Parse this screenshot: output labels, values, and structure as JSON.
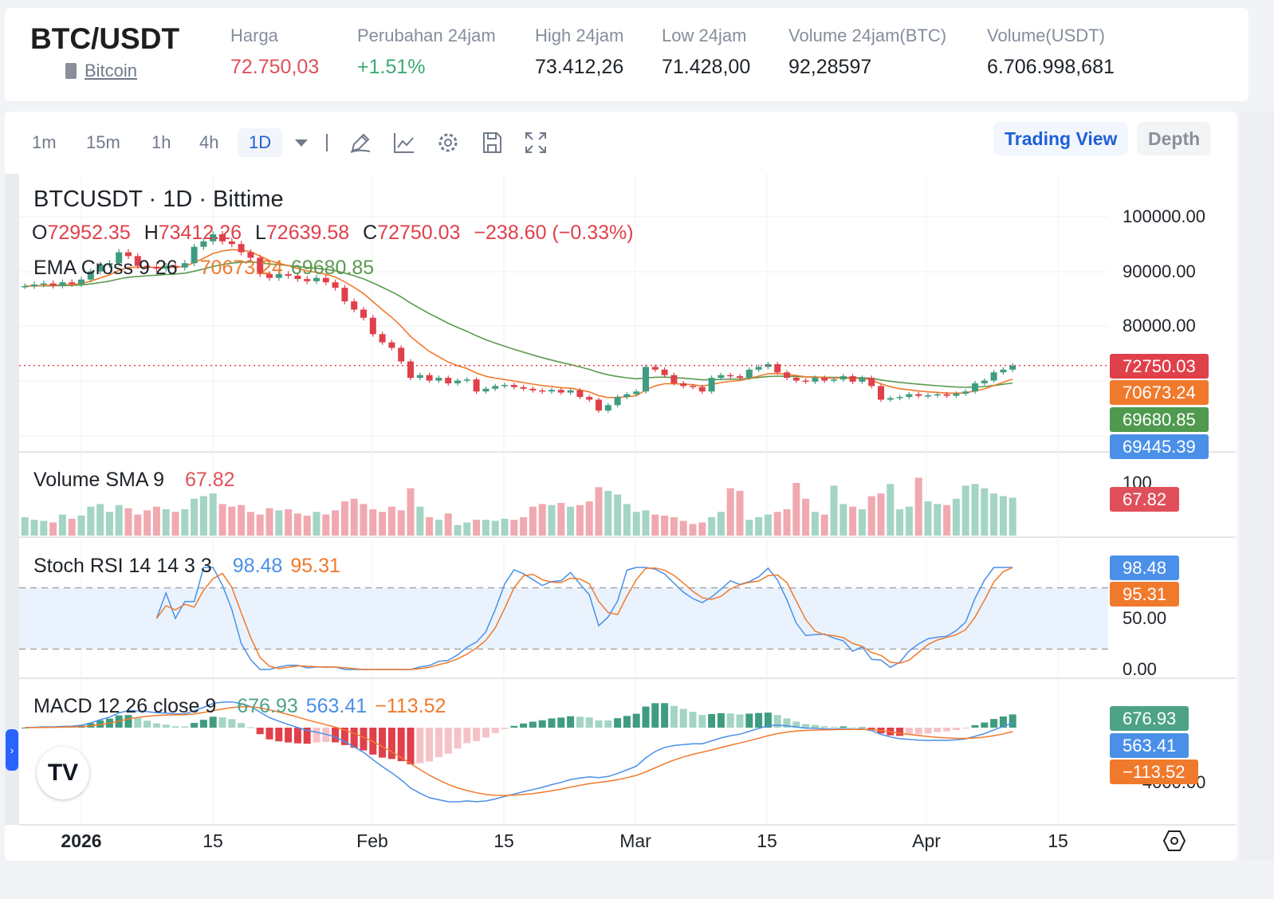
{
  "header": {
    "pair": "BTC/USDT",
    "coin": "Bitcoin",
    "stats": [
      {
        "label": "Harga",
        "value": "72.750,03",
        "color": "#e0505a"
      },
      {
        "label": "Perubahan 24jam",
        "value": "+1.51%",
        "color": "#3bab73"
      },
      {
        "label": "High 24jam",
        "value": "73.412,26",
        "color": "#1e2329"
      },
      {
        "label": "Low 24jam",
        "value": "71.428,00",
        "color": "#1e2329"
      },
      {
        "label": "Volume 24jam(BTC)",
        "value": "92,28597",
        "color": "#1e2329"
      },
      {
        "label": "Volume(USDT)",
        "value": "6.706.998,681",
        "color": "#1e2329"
      }
    ]
  },
  "toolbar": {
    "timeframes": [
      "1m",
      "15m",
      "1h",
      "4h",
      "1D"
    ],
    "active": "1D",
    "tabs": [
      "Trading View",
      "Depth"
    ],
    "active_tab": "Trading View",
    "icons": [
      "dropdown-icon",
      "pencil-draw-icon",
      "indicator-chart-icon",
      "gear-icon",
      "save-icon",
      "fullscreen-icon"
    ]
  },
  "legend": {
    "title": "BTCUSDT · 1D · Bittime",
    "o_label": "O",
    "o": "72952.35",
    "h_label": "H",
    "h": "73412.26",
    "l_label": "L",
    "l": "72639.58",
    "c_label": "C",
    "c": "72750.03",
    "chg": "−238.60 (−0.33%)",
    "ema_label": "EMA Cross 9 26",
    "ema1": "70673.24",
    "ema2": "69680.85",
    "vol_label": "Volume SMA 9",
    "vol_sma": "67.82",
    "stoch_label": "Stoch RSI 14 14 3 3",
    "k": "98.48",
    "d": "95.31",
    "macd_label": "MACD 12 26 close 9",
    "macd_hist": "676.93",
    "macd": "563.41",
    "signal": "−113.52"
  },
  "price_axis": [
    "100000.00",
    "90000.00",
    "80000.00"
  ],
  "price_tags": [
    {
      "v": "72750.03",
      "c": "#e0404a"
    },
    {
      "v": "70673.24",
      "c": "#f07a2c"
    },
    {
      "v": "69680.85",
      "c": "#4f9a4f"
    },
    {
      "v": "69445.39",
      "c": "#4a90e8"
    }
  ],
  "vol_axis": "100",
  "vol_tag": "67.82",
  "stoch_axis": [
    "50.00",
    "0.00"
  ],
  "stoch_tags": [
    {
      "v": "98.48",
      "c": "#4a90e8"
    },
    {
      "v": "95.31",
      "c": "#f07a2c"
    }
  ],
  "macd_axis": "−4000.00",
  "macd_tags": [
    {
      "v": "676.93",
      "c": "#4ea387"
    },
    {
      "v": "563.41",
      "c": "#4a90e8"
    },
    {
      "v": "−113.52",
      "c": "#f07a2c"
    }
  ],
  "x_axis": [
    "2026",
    "15",
    "Feb",
    "15",
    "Mar",
    "15",
    "Apr",
    "15"
  ],
  "colors": {
    "up": "#3f9c80",
    "down": "#e0404a",
    "ema9": "#f07a2c",
    "ema26": "#5b9a4f",
    "k": "#4a90e8",
    "d": "#f07a2c"
  },
  "chart_data": {
    "type": "candlestick",
    "x_start": "2025-12-26",
    "x_end": "2026-04-10",
    "ylim": [
      60000,
      100000
    ],
    "close": [
      87300,
      87600,
      87800,
      87400,
      88000,
      87700,
      88500,
      90000,
      91200,
      91500,
      93500,
      92800,
      91000,
      90800,
      90500,
      91000,
      90700,
      91500,
      94500,
      95500,
      96800,
      95500,
      95000,
      93500,
      92500,
      89500,
      88800,
      89500,
      89200,
      88600,
      88200,
      88800,
      88000,
      87000,
      84500,
      83000,
      81500,
      78500,
      77000,
      76000,
      73500,
      70500,
      71000,
      70000,
      70500,
      69500,
      70000,
      70200,
      68000,
      68500,
      69000,
      69200,
      68800,
      68500,
      68200,
      68000,
      68300,
      67800,
      68200,
      67000,
      66500,
      64500,
      65500,
      67000,
      67500,
      68000,
      72500,
      72000,
      71000,
      69500,
      69000,
      68800,
      68000,
      70500,
      71000,
      70800,
      70500,
      72000,
      72500,
      73000,
      71500,
      70500,
      70000,
      69800,
      70500,
      70000,
      70200,
      70800,
      69800,
      70500,
      69000,
      66500,
      66800,
      67000,
      67500,
      67200,
      67300,
      67500,
      67200,
      67600,
      68000,
      69500,
      70000,
      71500,
      72000,
      72750
    ],
    "volume": [
      35,
      30,
      28,
      25,
      40,
      32,
      38,
      55,
      60,
      45,
      58,
      52,
      40,
      48,
      55,
      50,
      45,
      50,
      70,
      75,
      80,
      60,
      55,
      58,
      45,
      40,
      52,
      48,
      50,
      42,
      38,
      45,
      40,
      48,
      65,
      70,
      60,
      50,
      45,
      55,
      48,
      90,
      55,
      35,
      30,
      42,
      20,
      25,
      30,
      30,
      28,
      32,
      30,
      35,
      55,
      60,
      58,
      62,
      55,
      58,
      65,
      92,
      85,
      78,
      60,
      45,
      48,
      40,
      38,
      35,
      28,
      22,
      25,
      35,
      45,
      90,
      85,
      30,
      35,
      40,
      45,
      50,
      100,
      70,
      45,
      40,
      95,
      60,
      55,
      50,
      75,
      80,
      98,
      50,
      55,
      110,
      65,
      60,
      58,
      70,
      95,
      98,
      90,
      80,
      75,
      72
    ]
  }
}
